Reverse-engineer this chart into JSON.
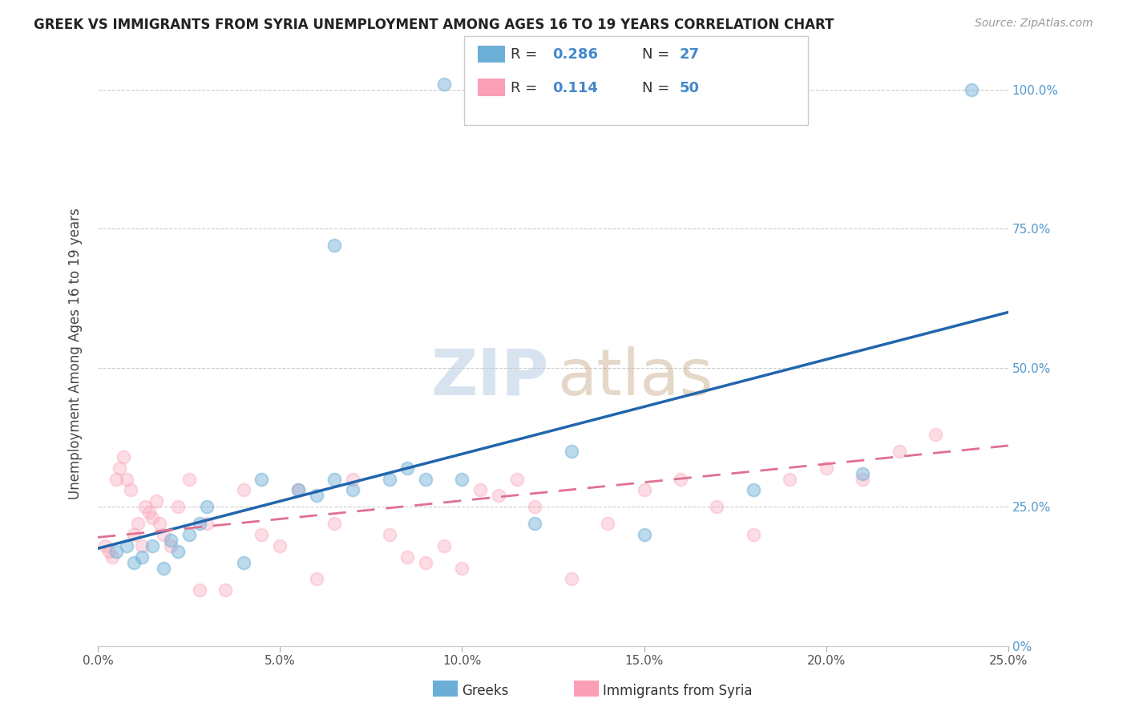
{
  "title": "GREEK VS IMMIGRANTS FROM SYRIA UNEMPLOYMENT AMONG AGES 16 TO 19 YEARS CORRELATION CHART",
  "source": "Source: ZipAtlas.com",
  "ylabel": "Unemployment Among Ages 16 to 19 years",
  "xlim": [
    0.0,
    0.25
  ],
  "ylim": [
    0.0,
    1.05
  ],
  "blue_color": "#6baed6",
  "pink_color": "#fa9fb5",
  "blue_line_color": "#2166ac",
  "pink_line_color": "#e07090",
  "greeks_x": [
    0.005,
    0.008,
    0.01,
    0.012,
    0.015,
    0.018,
    0.02,
    0.022,
    0.025,
    0.028,
    0.03,
    0.04,
    0.045,
    0.055,
    0.06,
    0.065,
    0.07,
    0.08,
    0.085,
    0.09,
    0.1,
    0.12,
    0.13,
    0.15,
    0.18,
    0.21,
    0.24
  ],
  "greeks_y": [
    0.17,
    0.18,
    0.15,
    0.16,
    0.18,
    0.14,
    0.19,
    0.17,
    0.2,
    0.22,
    0.25,
    0.15,
    0.3,
    0.28,
    0.27,
    0.3,
    0.28,
    0.3,
    0.32,
    0.3,
    0.3,
    0.22,
    0.35,
    0.2,
    0.28,
    0.31,
    1.0
  ],
  "syria_x": [
    0.002,
    0.003,
    0.004,
    0.005,
    0.006,
    0.007,
    0.008,
    0.009,
    0.01,
    0.011,
    0.012,
    0.013,
    0.014,
    0.015,
    0.016,
    0.017,
    0.018,
    0.02,
    0.022,
    0.025,
    0.028,
    0.03,
    0.035,
    0.04,
    0.045,
    0.05,
    0.055,
    0.06,
    0.065,
    0.07,
    0.08,
    0.085,
    0.09,
    0.095,
    0.1,
    0.105,
    0.11,
    0.115,
    0.12,
    0.13,
    0.14,
    0.15,
    0.16,
    0.17,
    0.18,
    0.19,
    0.2,
    0.21,
    0.22,
    0.23
  ],
  "syria_y": [
    0.18,
    0.17,
    0.16,
    0.3,
    0.32,
    0.34,
    0.3,
    0.28,
    0.2,
    0.22,
    0.18,
    0.25,
    0.24,
    0.23,
    0.26,
    0.22,
    0.2,
    0.18,
    0.25,
    0.3,
    0.1,
    0.22,
    0.1,
    0.28,
    0.2,
    0.18,
    0.28,
    0.12,
    0.22,
    0.3,
    0.2,
    0.16,
    0.15,
    0.18,
    0.14,
    0.28,
    0.27,
    0.3,
    0.25,
    0.12,
    0.22,
    0.28,
    0.3,
    0.25,
    0.2,
    0.3,
    0.32,
    0.3,
    0.35,
    0.38
  ],
  "blue_trendline_x": [
    0.0,
    0.25
  ],
  "blue_trendline_y": [
    0.175,
    0.6
  ],
  "pink_trendline_x": [
    0.0,
    0.25
  ],
  "pink_trendline_y": [
    0.195,
    0.36
  ],
  "extra_blue_points_x": [
    0.095,
    0.065,
    0.135
  ],
  "extra_blue_points_y": [
    1.01,
    0.72,
    0.97
  ],
  "xtick_values": [
    0.0,
    0.05,
    0.1,
    0.15,
    0.2,
    0.25
  ],
  "xtick_labels": [
    "0.0%",
    "5.0%",
    "10.0%",
    "15.0%",
    "20.0%",
    "25.0%"
  ],
  "ytick_values": [
    0.0,
    0.25,
    0.5,
    0.75,
    1.0
  ],
  "ytick_labels": [
    "0%",
    "25.0%",
    "50.0%",
    "75.0%",
    "100.0%"
  ]
}
